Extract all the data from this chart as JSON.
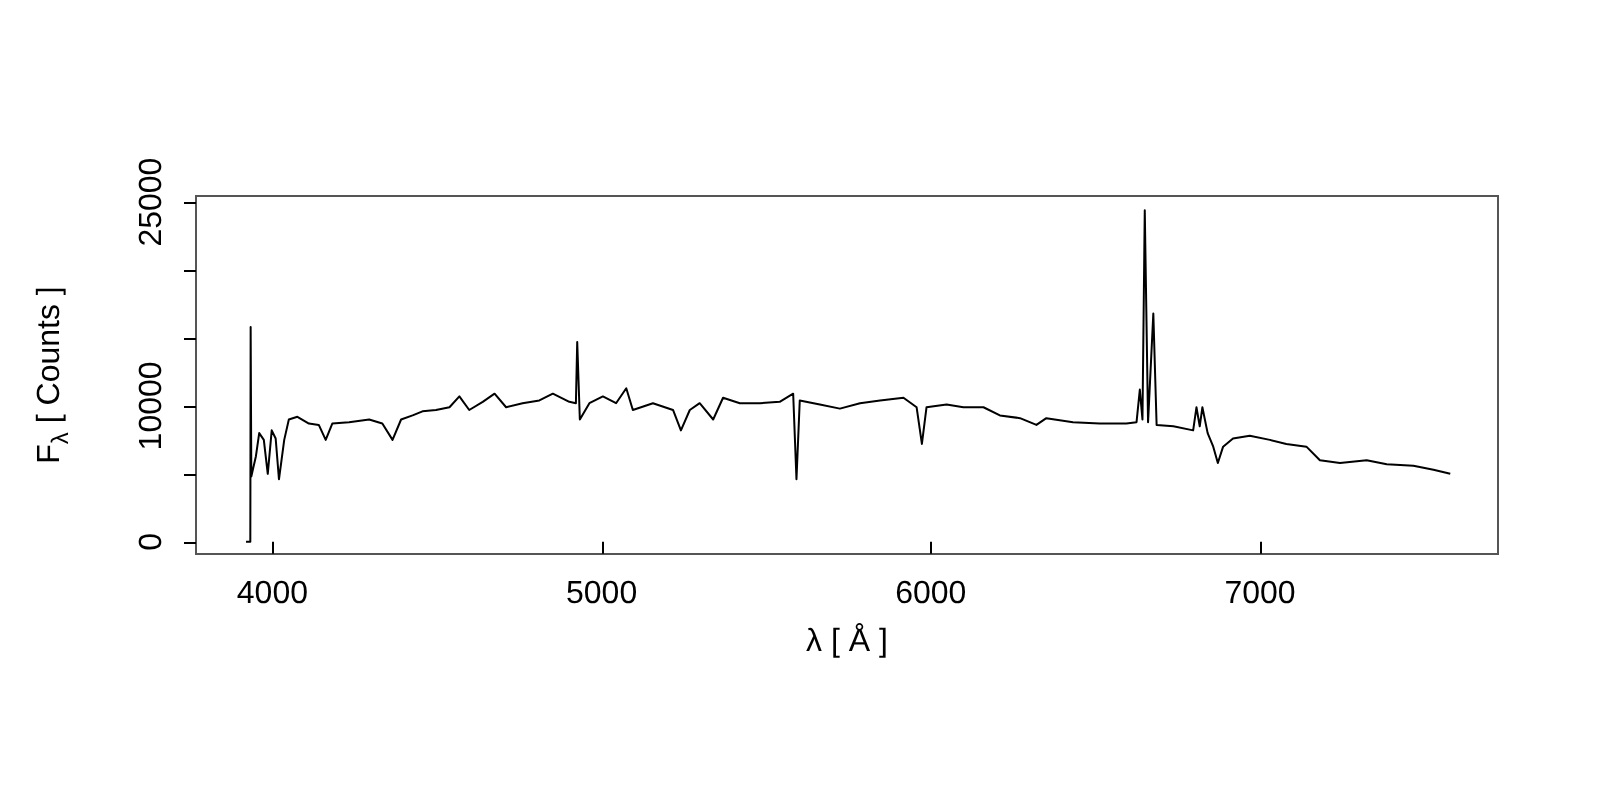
{
  "chart_data": {
    "type": "line",
    "xlabel": "λ [ Å ]",
    "ylabel": "F$_{λ}$ [ Counts ]",
    "xlim": [
      3768,
      7723
    ],
    "ylim": [
      -900,
      25450
    ],
    "xticks": [
      4000,
      5000,
      6000,
      7000
    ],
    "yticks": [
      0,
      {
        "value": 5000,
        "label": null
      },
      10000,
      {
        "value": 15000,
        "label": null
      },
      {
        "value": 20000,
        "label": null
      },
      25000
    ],
    "grid": false,
    "marker": "none",
    "series": [
      {
        "color": "#000000",
        "x": [
          3920,
          3933,
          3934,
          3936,
          3950,
          3960,
          3974,
          3986,
          3998,
          4010,
          4020,
          4036,
          4050,
          4076,
          4111,
          4141,
          4162,
          4182,
          4233,
          4294,
          4334,
          4365,
          4391,
          4426,
          4456,
          4497,
          4538,
          4568,
          4598,
          4639,
          4675,
          4710,
          4760,
          4811,
          4852,
          4902,
          4922,
          4926,
          4934,
          4963,
          5004,
          5044,
          5075,
          5095,
          5156,
          5217,
          5241,
          5268,
          5298,
          5339,
          5369,
          5420,
          5481,
          5541,
          5582,
          5592,
          5602,
          5663,
          5724,
          5785,
          5846,
          5917,
          5957,
          5973,
          5987,
          6048,
          6099,
          6160,
          6210,
          6271,
          6321,
          6351,
          6432,
          6513,
          6594,
          6625,
          6635,
          6643,
          6650,
          6660,
          6676,
          6686,
          6737,
          6797,
          6807,
          6817,
          6825,
          6841,
          6858,
          6872,
          6888,
          6918,
          6969,
          7030,
          7080,
          7141,
          7182,
          7243,
          7324,
          7385,
          7466,
          7527,
          7578
        ],
        "values": [
          0,
          0,
          15800,
          4800,
          6300,
          8000,
          7500,
          5000,
          8200,
          7600,
          4600,
          7500,
          9000,
          9200,
          8700,
          8600,
          7500,
          8700,
          8800,
          9000,
          8700,
          7500,
          9000,
          9300,
          9600,
          9700,
          9900,
          10700,
          9700,
          10300,
          10900,
          9900,
          10200,
          10400,
          10900,
          10300,
          10200,
          14700,
          9000,
          10200,
          10700,
          10200,
          11300,
          9700,
          10200,
          9700,
          8200,
          9700,
          10200,
          9000,
          10600,
          10200,
          10200,
          10300,
          10900,
          4600,
          10400,
          10100,
          9800,
          10200,
          10400,
          10600,
          9900,
          7200,
          9900,
          10100,
          9900,
          9900,
          9300,
          9100,
          8600,
          9100,
          8800,
          8700,
          8700,
          8800,
          11200,
          9000,
          24400,
          8800,
          16800,
          8600,
          8500,
          8200,
          9900,
          8500,
          9900,
          8000,
          7000,
          5800,
          7000,
          7600,
          7800,
          7500,
          7200,
          7000,
          6000,
          5800,
          6000,
          5700,
          5600,
          5300,
          5000
        ]
      }
    ]
  }
}
